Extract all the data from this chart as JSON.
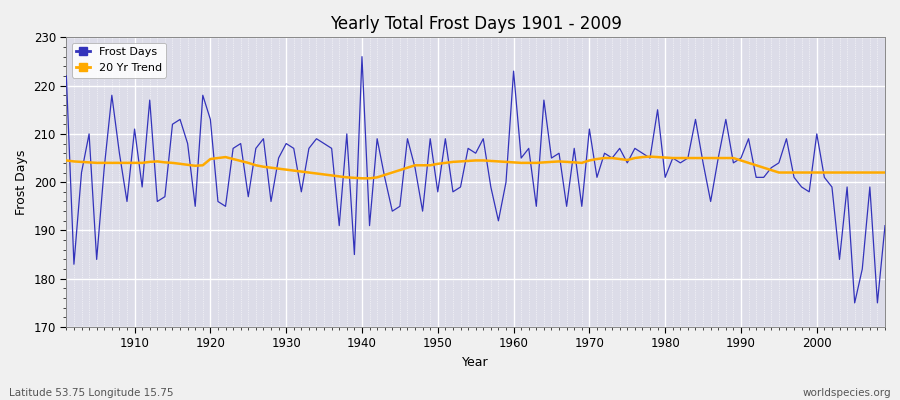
{
  "title": "Yearly Total Frost Days 1901 - 2009",
  "xlabel": "Year",
  "ylabel": "Frost Days",
  "footnote_left": "Latitude 53.75 Longitude 15.75",
  "footnote_right": "worldspecies.org",
  "legend_labels": [
    "Frost Days",
    "20 Yr Trend"
  ],
  "line_color_frost": "#3333bb",
  "line_color_trend": "#ffaa00",
  "bg_color": "#dcdce8",
  "fig_bg": "#f0f0f0",
  "ylim": [
    170,
    230
  ],
  "xlim": [
    1901,
    2009
  ],
  "yticks": [
    170,
    180,
    190,
    200,
    210,
    220,
    230
  ],
  "xticks": [
    1910,
    1920,
    1930,
    1940,
    1950,
    1960,
    1970,
    1980,
    1990,
    2000
  ],
  "years": [
    1901,
    1902,
    1903,
    1904,
    1905,
    1906,
    1907,
    1908,
    1909,
    1910,
    1911,
    1912,
    1913,
    1914,
    1915,
    1916,
    1917,
    1918,
    1919,
    1920,
    1921,
    1922,
    1923,
    1924,
    1925,
    1926,
    1927,
    1928,
    1929,
    1930,
    1931,
    1932,
    1933,
    1934,
    1935,
    1936,
    1937,
    1938,
    1939,
    1940,
    1941,
    1942,
    1943,
    1944,
    1945,
    1946,
    1947,
    1948,
    1949,
    1950,
    1951,
    1952,
    1953,
    1954,
    1955,
    1956,
    1957,
    1958,
    1959,
    1960,
    1961,
    1962,
    1963,
    1964,
    1965,
    1966,
    1967,
    1968,
    1969,
    1970,
    1971,
    1972,
    1973,
    1974,
    1975,
    1976,
    1977,
    1978,
    1979,
    1980,
    1981,
    1982,
    1983,
    1984,
    1985,
    1986,
    1987,
    1988,
    1989,
    1990,
    1991,
    1992,
    1993,
    1994,
    1995,
    1996,
    1997,
    1998,
    1999,
    2000,
    2001,
    2002,
    2003,
    2004,
    2005,
    2006,
    2007,
    2008,
    2009
  ],
  "frost_days": [
    222,
    183,
    202,
    210,
    184,
    203,
    218,
    206,
    196,
    211,
    199,
    217,
    196,
    197,
    212,
    213,
    208,
    195,
    218,
    213,
    196,
    195,
    207,
    208,
    197,
    207,
    209,
    196,
    205,
    208,
    207,
    198,
    207,
    209,
    208,
    207,
    191,
    210,
    185,
    226,
    191,
    209,
    201,
    194,
    195,
    209,
    203,
    194,
    209,
    198,
    209,
    198,
    199,
    207,
    206,
    209,
    199,
    192,
    200,
    223,
    205,
    207,
    195,
    217,
    205,
    206,
    195,
    207,
    195,
    211,
    201,
    206,
    205,
    207,
    204,
    207,
    206,
    205,
    215,
    201,
    205,
    204,
    205,
    213,
    204,
    196,
    205,
    213,
    204,
    205,
    209,
    201,
    201,
    203,
    204,
    209,
    201,
    199,
    198,
    210,
    201,
    199,
    184,
    199,
    175,
    182,
    199,
    175,
    191
  ],
  "trend": [
    204.5,
    204.3,
    204.2,
    204.1,
    204.0,
    204.0,
    204.0,
    204.0,
    204.0,
    204.0,
    204.0,
    204.2,
    204.3,
    204.1,
    204.0,
    203.8,
    203.6,
    203.4,
    203.5,
    204.8,
    205.0,
    205.2,
    204.8,
    204.4,
    204.0,
    203.5,
    203.2,
    203.0,
    202.8,
    202.6,
    202.4,
    202.2,
    202.0,
    201.8,
    201.6,
    201.4,
    201.2,
    201.0,
    200.9,
    200.8,
    200.8,
    201.0,
    201.5,
    202.0,
    202.5,
    203.0,
    203.5,
    203.5,
    203.5,
    203.8,
    204.0,
    204.2,
    204.3,
    204.4,
    204.5,
    204.5,
    204.4,
    204.3,
    204.2,
    204.1,
    204.0,
    204.0,
    204.0,
    204.1,
    204.2,
    204.3,
    204.2,
    204.1,
    204.0,
    204.5,
    204.8,
    205.0,
    205.0,
    204.8,
    204.6,
    205.0,
    205.2,
    205.3,
    205.2,
    205.1,
    205.0,
    205.0,
    205.0,
    205.0,
    205.0,
    205.0,
    205.0,
    205.0,
    205.0,
    204.5,
    204.0,
    203.5,
    203.0,
    202.5,
    202.0,
    202.0,
    202.0,
    202.0,
    202.0,
    202.0,
    202.0,
    202.0,
    202.0,
    202.0,
    202.0,
    202.0,
    202.0,
    202.0,
    202.0
  ]
}
